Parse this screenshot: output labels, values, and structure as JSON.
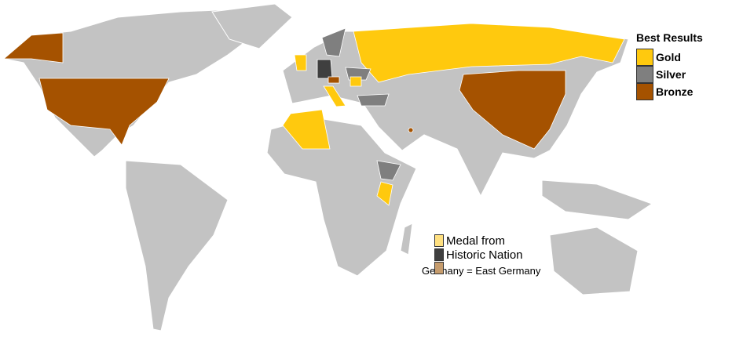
{
  "legend": {
    "title": "Best Results",
    "items": [
      {
        "label": "Gold",
        "color": "#FFC90E"
      },
      {
        "label": "Silver",
        "color": "#7F7F7F"
      },
      {
        "label": "Bronze",
        "color": "#A55200"
      }
    ]
  },
  "historic_legend": {
    "items": [
      {
        "label": "Medal from",
        "color": "#FFE080"
      },
      {
        "label": "Historic Nation",
        "color": "#3F3F3F"
      },
      {
        "label": "",
        "color": "#C69C6D"
      }
    ],
    "note": "Germany = East Germany"
  },
  "colors": {
    "land": "#C3C3C3",
    "border": "#FFFFFF",
    "ocean": "#FFFFFF"
  }
}
